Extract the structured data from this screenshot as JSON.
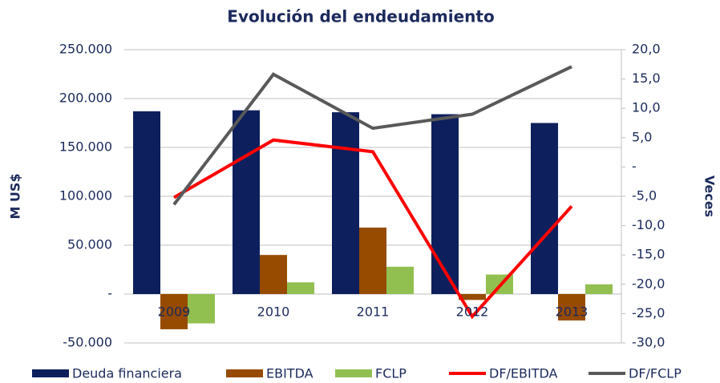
{
  "chart_data": {
    "type": "bar",
    "title": "Evolución del endeudamiento",
    "y_label": "M US$",
    "y2_label": "Veces",
    "categories": [
      "2009",
      "2010",
      "2011",
      "2012",
      "2013"
    ],
    "series": [
      {
        "name": "Deuda financiera",
        "color": "#0d1f5c",
        "values": [
          187000,
          188000,
          186000,
          184000,
          175000
        ]
      },
      {
        "name": "EBITDA",
        "color": "#964b00",
        "values": [
          -36000,
          40000,
          68000,
          -6000,
          -27000
        ]
      },
      {
        "name": "FCLP",
        "color": "#92c050",
        "values": [
          -30000,
          12000,
          28000,
          20000,
          10000
        ]
      },
      {
        "name": "DF/EBITDA",
        "color": "#ff0000",
        "type": "line",
        "axis": "y2",
        "values": [
          -5.2,
          4.6,
          2.6,
          -25.5,
          -6.7
        ]
      },
      {
        "name": "DF/FCLP",
        "color": "#595959",
        "type": "line",
        "axis": "y2",
        "values": [
          -6.4,
          15.8,
          6.6,
          9.0,
          17.1
        ]
      }
    ],
    "ylim": [
      -50000,
      250000
    ],
    "yticks": [
      {
        "value": -50000,
        "label": "-50.000"
      },
      {
        "value": 0,
        "label": "-"
      },
      {
        "value": 50000,
        "label": "50.000"
      },
      {
        "value": 100000,
        "label": "100.000"
      },
      {
        "value": 150000,
        "label": "150.000"
      },
      {
        "value": 200000,
        "label": "200.000"
      },
      {
        "value": 250000,
        "label": "250.000"
      }
    ],
    "y2lim": [
      -30,
      20
    ],
    "y2ticks": [
      {
        "value": -30,
        "label": "-30,0"
      },
      {
        "value": -25,
        "label": "-25,0"
      },
      {
        "value": -20,
        "label": "-20,0"
      },
      {
        "value": -15,
        "label": "-15,0"
      },
      {
        "value": -10,
        "label": "-10,0"
      },
      {
        "value": -5,
        "label": "-5,0"
      },
      {
        "value": 0,
        "label": "-"
      },
      {
        "value": 5,
        "label": "5,0"
      },
      {
        "value": 10,
        "label": "10,0"
      },
      {
        "value": 15,
        "label": "15,0"
      },
      {
        "value": 20,
        "label": "20,0"
      }
    ],
    "grid": true,
    "legend": "bottom"
  }
}
